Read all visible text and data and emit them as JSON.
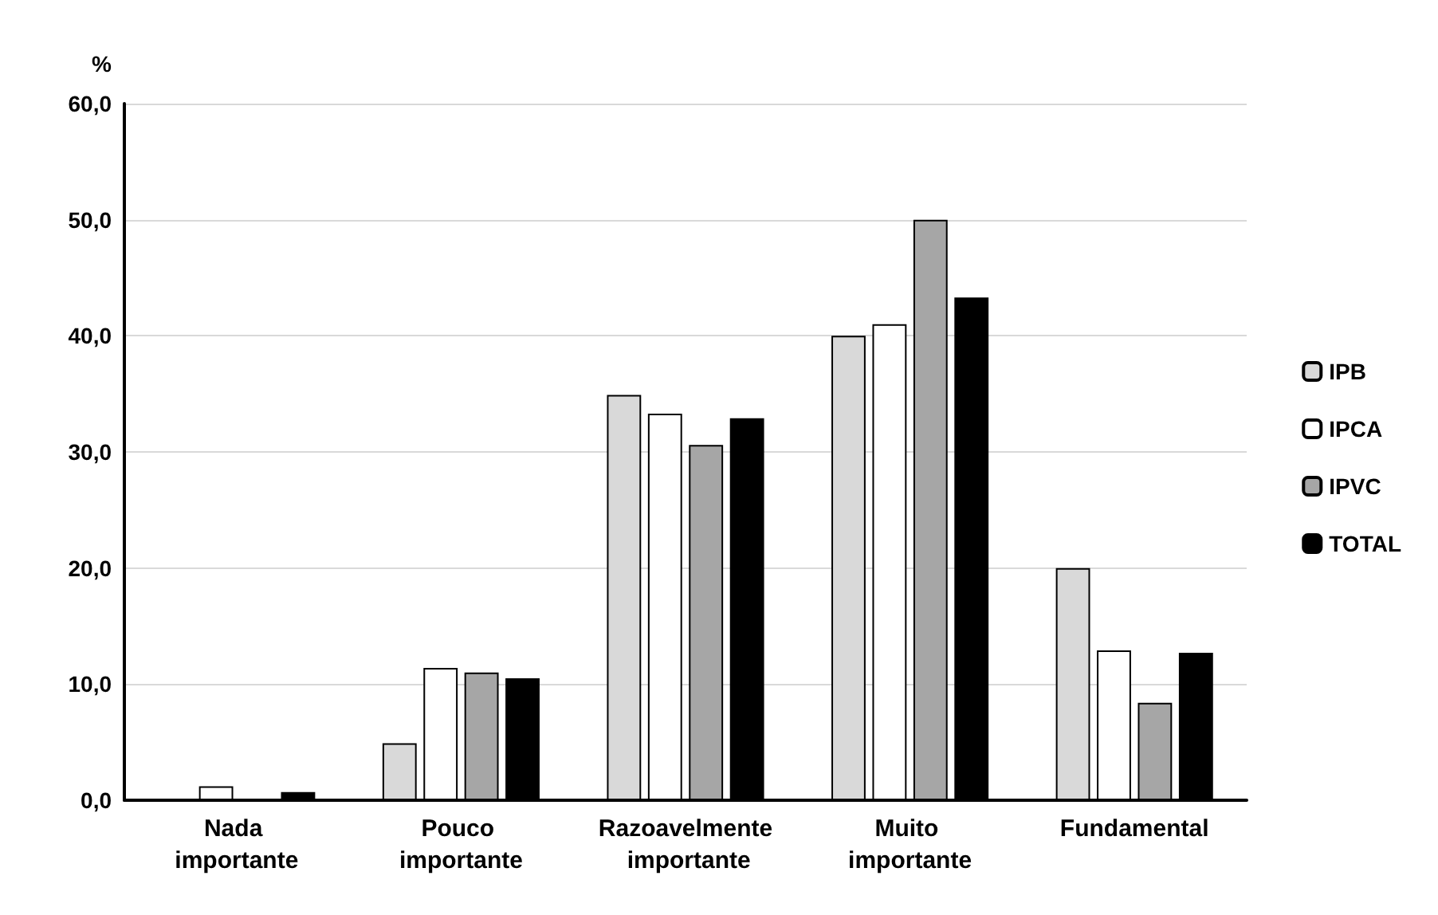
{
  "chart_data": {
    "type": "bar",
    "ylabel": "%",
    "categories": [
      "Nada importante",
      "Pouco importante",
      "Razoavelmente importante",
      "Muito importante",
      "Fundamental"
    ],
    "series": [
      {
        "name": "IPB",
        "color": "#d9d9d9",
        "values": [
          0,
          4.9,
          34.9,
          40.0,
          20.0
        ]
      },
      {
        "name": "IPCA",
        "color": "#ffffff",
        "values": [
          1.2,
          11.4,
          33.3,
          41.0,
          12.9
        ]
      },
      {
        "name": "IPVC",
        "color": "#a6a6a6",
        "values": [
          0,
          11.0,
          30.6,
          50.0,
          8.4
        ]
      },
      {
        "name": "TOTAL",
        "color": "#000000",
        "values": [
          0.7,
          10.5,
          32.9,
          43.3,
          12.7
        ]
      }
    ],
    "ylim": [
      0,
      60
    ],
    "yticks": [
      {
        "value": 0,
        "label": "0,0"
      },
      {
        "value": 10,
        "label": "10,0"
      },
      {
        "value": 20,
        "label": "20,0"
      },
      {
        "value": 30,
        "label": "30,0"
      },
      {
        "value": 40,
        "label": "40,0"
      },
      {
        "value": 50,
        "label": "50,0"
      },
      {
        "value": 60,
        "label": "60,0"
      }
    ],
    "grid": "y",
    "legend": "right"
  }
}
